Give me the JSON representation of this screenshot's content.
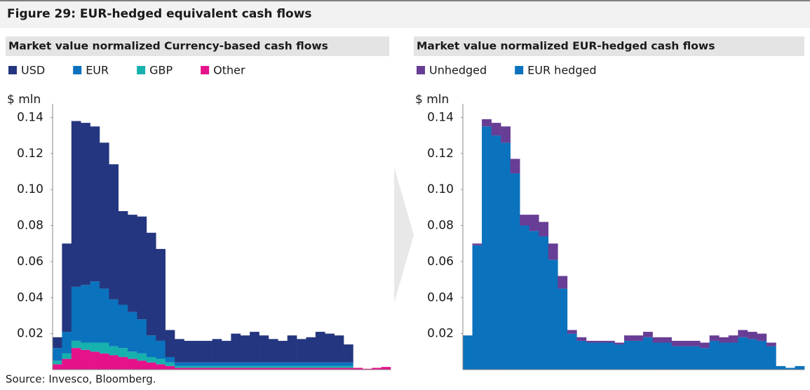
{
  "title": "Figure 29: EUR-hedged equivalent cash flows",
  "source": "Source: Invesco, Bloomberg.",
  "chart_data": [
    {
      "type": "bar",
      "stacked": true,
      "title": "Market value normalized Currency-based cash flows",
      "y_label": "$ mln",
      "ylim": [
        0,
        0.146
      ],
      "yticks": [
        0.02,
        0.04,
        0.06,
        0.08,
        {
          "value": 0.1,
          "label": "0.10"
        },
        0.12,
        0.14
      ],
      "series": [
        {
          "name": "USD",
          "color": "#24367f",
          "values": [
            0.006,
            0.049,
            0.092,
            0.09,
            0.086,
            0.081,
            0.075,
            0.052,
            0.054,
            0.057,
            0.057,
            0.051,
            0.015,
            0.013,
            0.012,
            0.012,
            0.012,
            0.013,
            0.012,
            0.016,
            0.015,
            0.017,
            0.015,
            0.013,
            0.012,
            0.015,
            0.013,
            0.014,
            0.017,
            0.016,
            0.015,
            0.01,
            0,
            0,
            0,
            0
          ]
        },
        {
          "name": "EUR",
          "color": "#0b72bd",
          "values": [
            0.007,
            0.012,
            0.03,
            0.032,
            0.034,
            0.03,
            0.026,
            0.024,
            0.022,
            0.019,
            0.012,
            0.01,
            0.003,
            0.002,
            0.002,
            0.002,
            0.002,
            0.002,
            0.002,
            0.002,
            0.002,
            0.002,
            0.002,
            0.002,
            0.002,
            0.002,
            0.002,
            0.002,
            0.002,
            0.002,
            0.002,
            0.002,
            0,
            0,
            0,
            0
          ]
        },
        {
          "name": "GBP",
          "color": "#17b1ad",
          "values": [
            0.002,
            0.003,
            0.004,
            0.004,
            0.005,
            0.006,
            0.005,
            0.005,
            0.004,
            0.004,
            0.003,
            0.003,
            0.002,
            0.001,
            0.001,
            0.001,
            0.001,
            0.001,
            0.001,
            0.001,
            0.001,
            0.001,
            0.001,
            0.001,
            0.001,
            0.001,
            0.001,
            0.001,
            0.001,
            0.001,
            0.001,
            0.001,
            0,
            0,
            0,
            0
          ]
        },
        {
          "name": "Other",
          "color": "#e5128a",
          "values": [
            0.003,
            0.006,
            0.012,
            0.011,
            0.01,
            0.009,
            0.008,
            0.007,
            0.006,
            0.005,
            0.004,
            0.003,
            0.002,
            0.001,
            0.001,
            0.001,
            0.001,
            0.001,
            0.001,
            0.001,
            0.001,
            0.001,
            0.001,
            0.001,
            0.001,
            0.001,
            0.001,
            0.001,
            0.001,
            0.001,
            0.001,
            0.001,
            0.001,
            0.0005,
            0.001,
            0.0015
          ]
        }
      ]
    },
    {
      "type": "bar",
      "stacked": true,
      "title": "Market value normalized EUR-hedged cash flows",
      "y_label": "$ mln",
      "ylim": [
        0,
        0.146
      ],
      "yticks": [
        0.02,
        0.04,
        0.06,
        0.08,
        {
          "value": 0.1,
          "label": "0.10"
        },
        0.12,
        0.14
      ],
      "series": [
        {
          "name": "Unhedged",
          "color": "#673d95",
          "values": [
            0,
            0.001,
            0.004,
            0.007,
            0.009,
            0.008,
            0.006,
            0.009,
            0.008,
            0.009,
            0.007,
            0.002,
            0.002,
            0.001,
            0.001,
            0.001,
            0.001,
            0.003,
            0.003,
            0.003,
            0.003,
            0.003,
            0.003,
            0.003,
            0.003,
            0.003,
            0.003,
            0.003,
            0.004,
            0.004,
            0.004,
            0.004,
            0.002,
            0,
            0,
            0
          ]
        },
        {
          "name": "EUR hedged",
          "color": "#0b72bd",
          "values": [
            0.019,
            0.069,
            0.135,
            0.13,
            0.126,
            0.109,
            0.08,
            0.077,
            0.074,
            0.061,
            0.045,
            0.02,
            0.016,
            0.015,
            0.015,
            0.015,
            0.014,
            0.016,
            0.016,
            0.018,
            0.015,
            0.015,
            0.013,
            0.013,
            0.013,
            0.012,
            0.016,
            0.015,
            0.015,
            0.018,
            0.017,
            0.016,
            0.013,
            0.002,
            0.001,
            0.002
          ]
        }
      ]
    }
  ]
}
